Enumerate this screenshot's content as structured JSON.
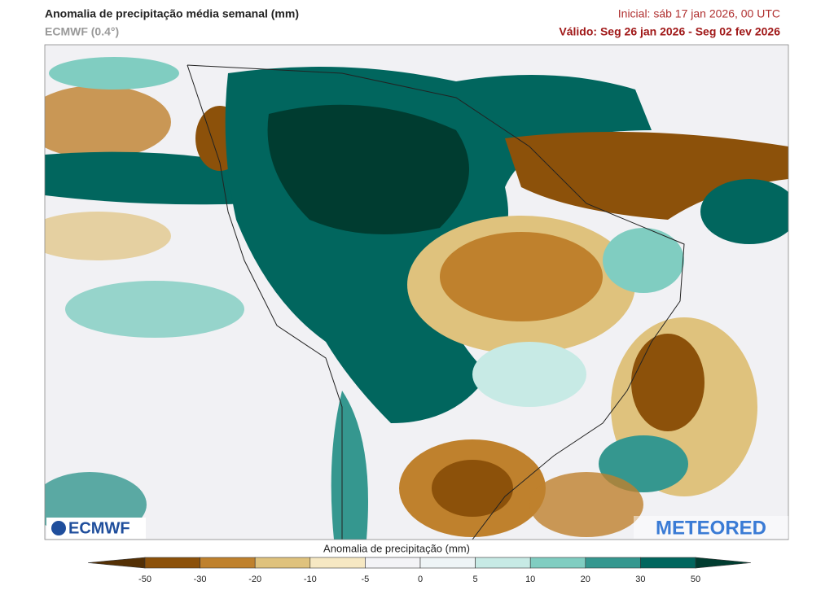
{
  "header": {
    "title": "Anomalia de precipitação média semanal (mm)",
    "subtitle": "ECMWF (0.4°)",
    "initial": "Inicial:  sáb 17 jan 2026, 00 UTC",
    "valid": "Válido: Seg 26 jan 2026 - Seg 02 fev 2026"
  },
  "logos": {
    "left": "ECMWF",
    "right": "METEORED"
  },
  "colorbar": {
    "label": "Anomalia de precipitação (mm)",
    "ticks": [
      -50,
      -30,
      -20,
      -10,
      -5,
      0,
      5,
      10,
      20,
      30,
      50
    ],
    "colors": [
      "#543005",
      "#8c510a",
      "#bf812d",
      "#dfc27d",
      "#f6e8c3",
      "#f3f3f6",
      "#eef4f6",
      "#c7eae5",
      "#80cdc1",
      "#35978f",
      "#01665e",
      "#003c30"
    ]
  }
}
